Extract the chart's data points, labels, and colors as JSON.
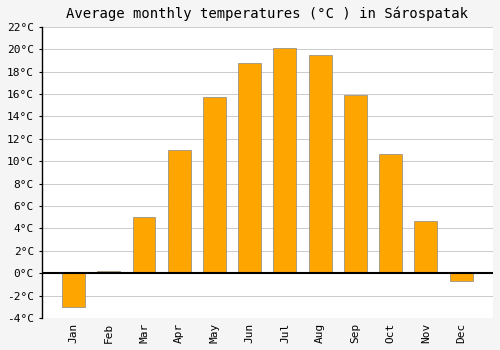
{
  "title": "Average monthly temperatures (°C ) in Sárospatak",
  "months": [
    "Jan",
    "Feb",
    "Mar",
    "Apr",
    "May",
    "Jun",
    "Jul",
    "Aug",
    "Sep",
    "Oct",
    "Nov",
    "Dec"
  ],
  "values": [
    -3.0,
    0.2,
    5.0,
    11.0,
    15.7,
    18.8,
    20.1,
    19.5,
    15.9,
    10.6,
    4.7,
    -0.7
  ],
  "bar_color": "#FFA500",
  "bar_edge_color": "#888888",
  "ylim": [
    -4,
    22
  ],
  "yticks": [
    -4,
    -2,
    0,
    2,
    4,
    6,
    8,
    10,
    12,
    14,
    16,
    18,
    20,
    22
  ],
  "ytick_labels": [
    "-4°C",
    "-2°C",
    "0°C",
    "2°C",
    "4°C",
    "6°C",
    "8°C",
    "10°C",
    "12°C",
    "14°C",
    "16°C",
    "18°C",
    "20°C",
    "22°C"
  ],
  "grid_color": "#cccccc",
  "plot_bg_color": "#ffffff",
  "fig_bg_color": "#f5f5f5",
  "zero_line_color": "#000000",
  "left_spine_color": "#000000",
  "title_fontsize": 10,
  "tick_fontsize": 8,
  "bar_width": 0.65
}
